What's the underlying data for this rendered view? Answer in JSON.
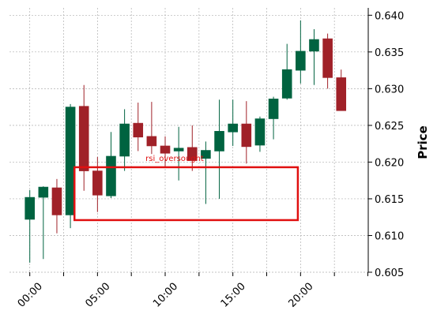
{
  "chart_data": {
    "type": "candlestick",
    "title": "",
    "xlabel": "",
    "ylabel": "Price",
    "ylim": [
      0.605,
      0.641
    ],
    "x_tick_labels": [
      "00:00",
      "05:00",
      "10:00",
      "15:00",
      "20:00"
    ],
    "x_tick_positions": [
      0,
      5,
      10,
      15,
      20
    ],
    "y_ticks": [
      0.605,
      0.61,
      0.615,
      0.62,
      0.625,
      0.63,
      0.635,
      0.64
    ],
    "y_tick_labels": [
      "0.605",
      "0.610",
      "0.615",
      "0.620",
      "0.625",
      "0.630",
      "0.635",
      "0.640"
    ],
    "grid": true,
    "colors": {
      "up": "#006340",
      "down": "#a02128",
      "annotation": "#e01010",
      "grid": "#b0b0b0"
    },
    "candles": [
      {
        "t": 0,
        "open": 0.6122,
        "high": 0.6162,
        "low": 0.6063,
        "close": 0.6152
      },
      {
        "t": 1,
        "open": 0.6152,
        "high": 0.6167,
        "low": 0.6068,
        "close": 0.6166
      },
      {
        "t": 2,
        "open": 0.6165,
        "high": 0.6177,
        "low": 0.6103,
        "close": 0.6128
      },
      {
        "t": 3,
        "open": 0.6128,
        "high": 0.6279,
        "low": 0.611,
        "close": 0.6275
      },
      {
        "t": 4,
        "open": 0.6276,
        "high": 0.6305,
        "low": 0.6161,
        "close": 0.6188
      },
      {
        "t": 5,
        "open": 0.6188,
        "high": 0.6207,
        "low": 0.6132,
        "close": 0.6155
      },
      {
        "t": 6,
        "open": 0.6154,
        "high": 0.6241,
        "low": 0.6151,
        "close": 0.6208
      },
      {
        "t": 7,
        "open": 0.6208,
        "high": 0.6272,
        "low": 0.6188,
        "close": 0.6252
      },
      {
        "t": 8,
        "open": 0.6253,
        "high": 0.6281,
        "low": 0.6215,
        "close": 0.6234
      },
      {
        "t": 9,
        "open": 0.6235,
        "high": 0.6282,
        "low": 0.6211,
        "close": 0.6222
      },
      {
        "t": 10,
        "open": 0.6222,
        "high": 0.6235,
        "low": 0.6192,
        "close": 0.6212
      },
      {
        "t": 11,
        "open": 0.6215,
        "high": 0.6248,
        "low": 0.6175,
        "close": 0.6219
      },
      {
        "t": 12,
        "open": 0.622,
        "high": 0.625,
        "low": 0.6188,
        "close": 0.6202
      },
      {
        "t": 13,
        "open": 0.6205,
        "high": 0.6228,
        "low": 0.6143,
        "close": 0.6216
      },
      {
        "t": 14,
        "open": 0.6215,
        "high": 0.6285,
        "low": 0.615,
        "close": 0.6242
      },
      {
        "t": 15,
        "open": 0.6241,
        "high": 0.6285,
        "low": 0.6222,
        "close": 0.6252
      },
      {
        "t": 16,
        "open": 0.6252,
        "high": 0.6283,
        "low": 0.6198,
        "close": 0.6221
      },
      {
        "t": 17,
        "open": 0.6223,
        "high": 0.6262,
        "low": 0.6214,
        "close": 0.6259
      },
      {
        "t": 18,
        "open": 0.6259,
        "high": 0.6289,
        "low": 0.6231,
        "close": 0.6286
      },
      {
        "t": 19,
        "open": 0.6287,
        "high": 0.6361,
        "low": 0.6285,
        "close": 0.6326
      },
      {
        "t": 20,
        "open": 0.6325,
        "high": 0.6393,
        "low": 0.6307,
        "close": 0.6351
      },
      {
        "t": 21,
        "open": 0.6351,
        "high": 0.6381,
        "low": 0.6305,
        "close": 0.6367
      },
      {
        "t": 22,
        "open": 0.6368,
        "high": 0.6375,
        "low": 0.63,
        "close": 0.6315
      },
      {
        "t": 23,
        "open": 0.6315,
        "high": 0.6326,
        "low": 0.627,
        "close": 0.627
      }
    ],
    "annotation": {
      "text": "rsi_oversought",
      "x_start": 3.3,
      "x_end": 19.8,
      "y_low": 0.6121,
      "y_high": 0.6193
    }
  }
}
